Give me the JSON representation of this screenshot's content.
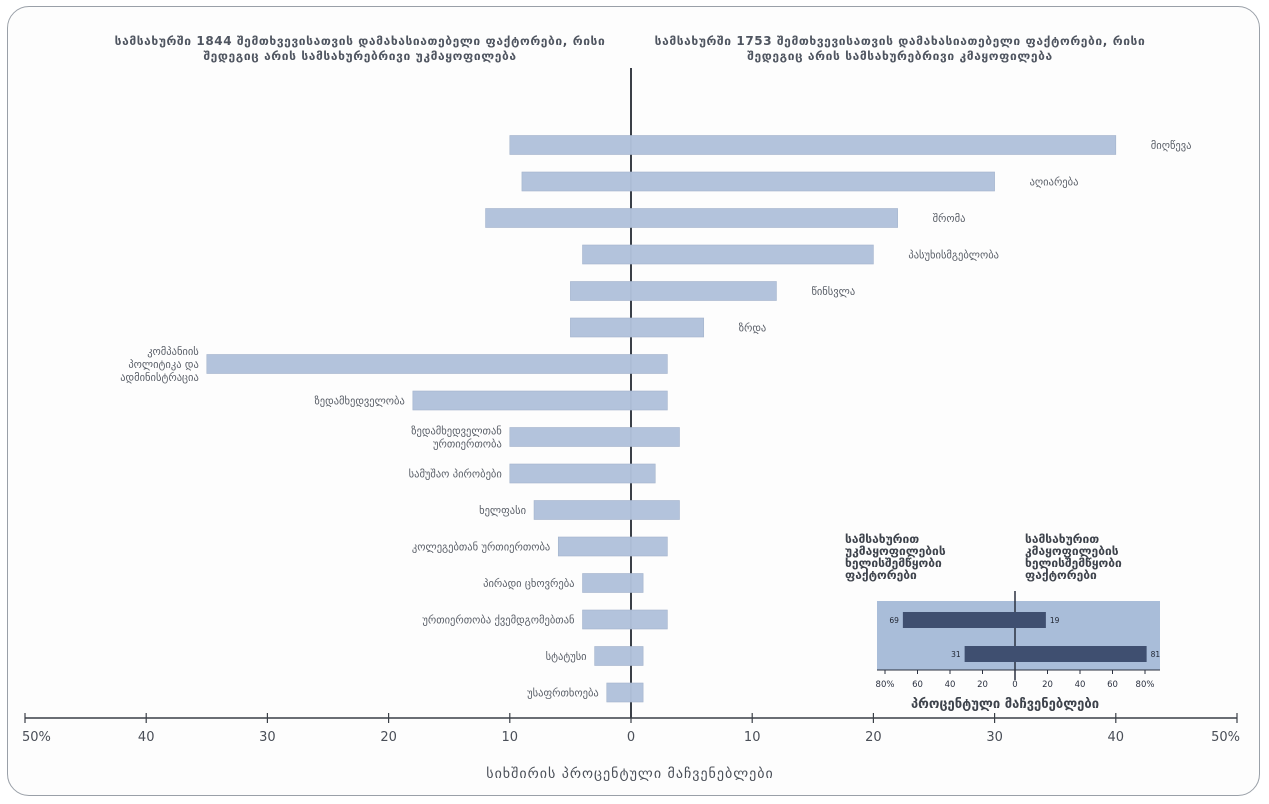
{
  "chart_data": {
    "type": "bar",
    "orientation": "horizontal-diverging",
    "left_title": "სამსახურში 1844 შემთხვევისათვის დამახასიათებელი ფაქტორები, რისი შედეგიც არის სამსახურებრივი უკმაყოფილება",
    "right_title": "სამსახურში 1753 შემთხვევისათვის დამახასიათებელი ფაქტორები, რისი შედეგიც არის სამსახურებრივი კმაყოფილება",
    "xlabel": "სიხშირის პროცენტული მაჩვენებლები",
    "xlim": [
      -50,
      50
    ],
    "xticks": [
      -50,
      -40,
      -30,
      -20,
      -10,
      0,
      10,
      20,
      30,
      40,
      50
    ],
    "xtick_labels": [
      "50%",
      "40",
      "30",
      "20",
      "10",
      "0",
      "10",
      "20",
      "30",
      "40",
      "50%"
    ],
    "categories": [
      "მიღწევა",
      "აღიარება",
      "შრომა",
      "პასუხისმგებლობა",
      "წინსვლა",
      "ზრდა",
      "კომპანიის პოლიტიკა და ადმინისტრაცია",
      "ზედამხედველობა",
      "ზედამხედველთან ურთიერთობა",
      "სამუშაო პირობები",
      "ხელფასი",
      "კოლეგებთან ურთიერთობა",
      "პირადი ცხოვრება",
      "ურთიერთობა ქვემდგომებთან",
      "სტატუსი",
      "უსაფრთხოება"
    ],
    "series": [
      {
        "values": [
          10,
          9,
          12,
          4,
          5,
          5,
          35,
          18,
          10,
          10,
          8,
          6,
          4,
          4,
          3,
          2
        ]
      },
      {
        "values": [
          40,
          30,
          22,
          20,
          12,
          6,
          3,
          3,
          4,
          2,
          4,
          3,
          1,
          3,
          1,
          1
        ]
      }
    ],
    "bar_color": "#b3c3dc",
    "grid": false,
    "inset": {
      "type": "bar",
      "left_title": "სამსახურით უკმაყოფილების ხელისშემწყობი ფაქტორები",
      "right_title": "სამსახურით კმაყოფილების ხელისშემწყობი ფაქტორები",
      "xlabel": "პროცენტული მაჩვენებლები",
      "xlim": [
        -80,
        80
      ],
      "xticks": [
        -80,
        -60,
        -40,
        -20,
        0,
        20,
        40,
        60,
        80
      ],
      "xtick_labels": [
        "80%",
        "60",
        "40",
        "20",
        "0",
        "20",
        "40",
        "60",
        "80%"
      ],
      "series": [
        {
          "values": [
            69,
            31
          ]
        },
        {
          "values": [
            19,
            81
          ]
        }
      ],
      "value_labels_left": [
        "69",
        "31"
      ],
      "value_labels_right": [
        "19",
        "81"
      ],
      "background": "#a9bdd9",
      "bar_color": "#3f4f70"
    }
  }
}
